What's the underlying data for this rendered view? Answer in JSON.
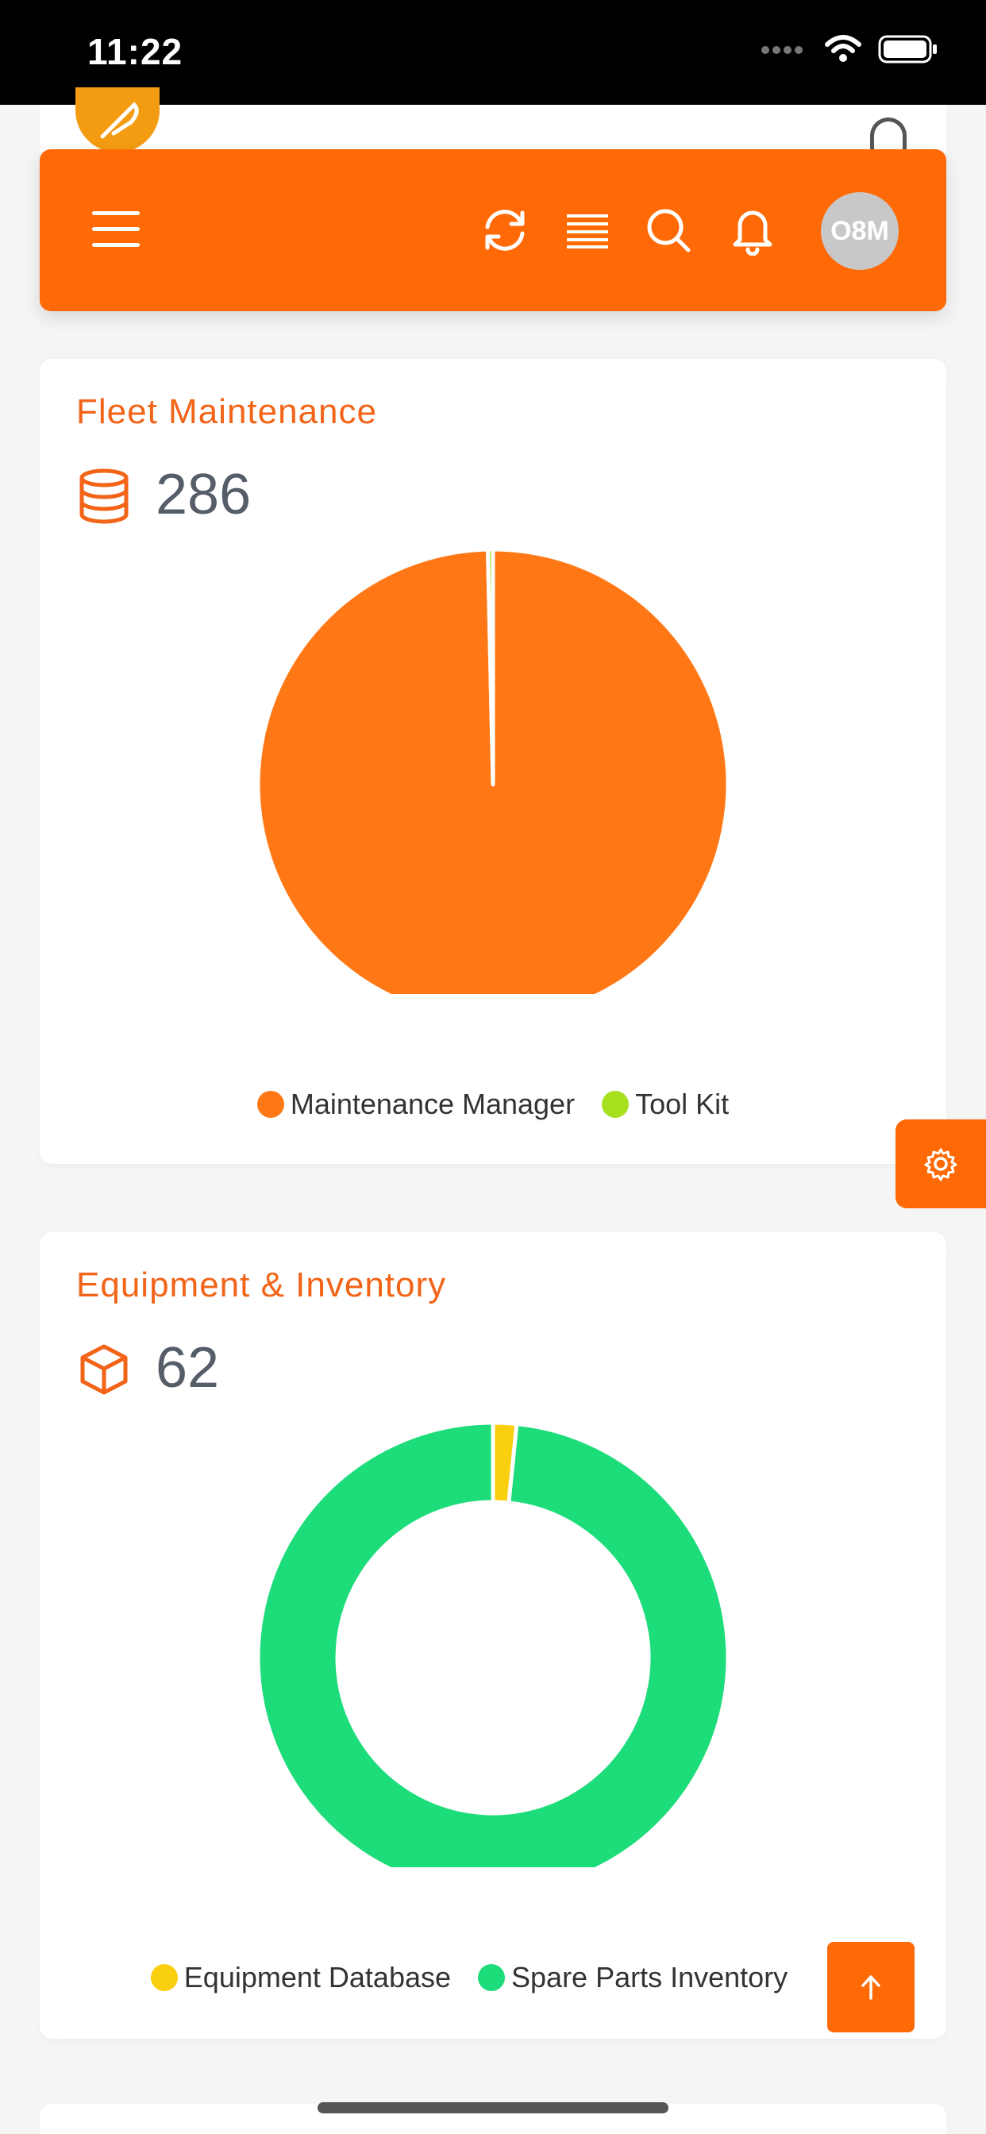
{
  "status_bar": {
    "time": "11:22"
  },
  "header": {
    "avatar_initials": "O8M"
  },
  "cards": [
    {
      "title": "Fleet Maintenance",
      "count": "286",
      "icon": "database-icon",
      "chart_data": {
        "type": "pie",
        "categories": [
          "Maintenance Manager",
          "Tool Kit"
        ],
        "values": [
          285,
          1
        ],
        "colors": [
          "#ff7815",
          "#a7e01f"
        ],
        "legend": "bottom"
      }
    },
    {
      "title": "Equipment & Inventory",
      "count": "62",
      "icon": "box-icon",
      "chart_data": {
        "type": "donut",
        "categories": [
          "Equipment Database",
          "Spare Parts Inventory"
        ],
        "values": [
          1,
          61
        ],
        "colors": [
          "#f9cf0f",
          "#1ddc7a"
        ],
        "legend": "bottom"
      }
    }
  ],
  "colors": {
    "accent": "#ff6a06",
    "title": "#f26418",
    "count": "#555d68"
  }
}
